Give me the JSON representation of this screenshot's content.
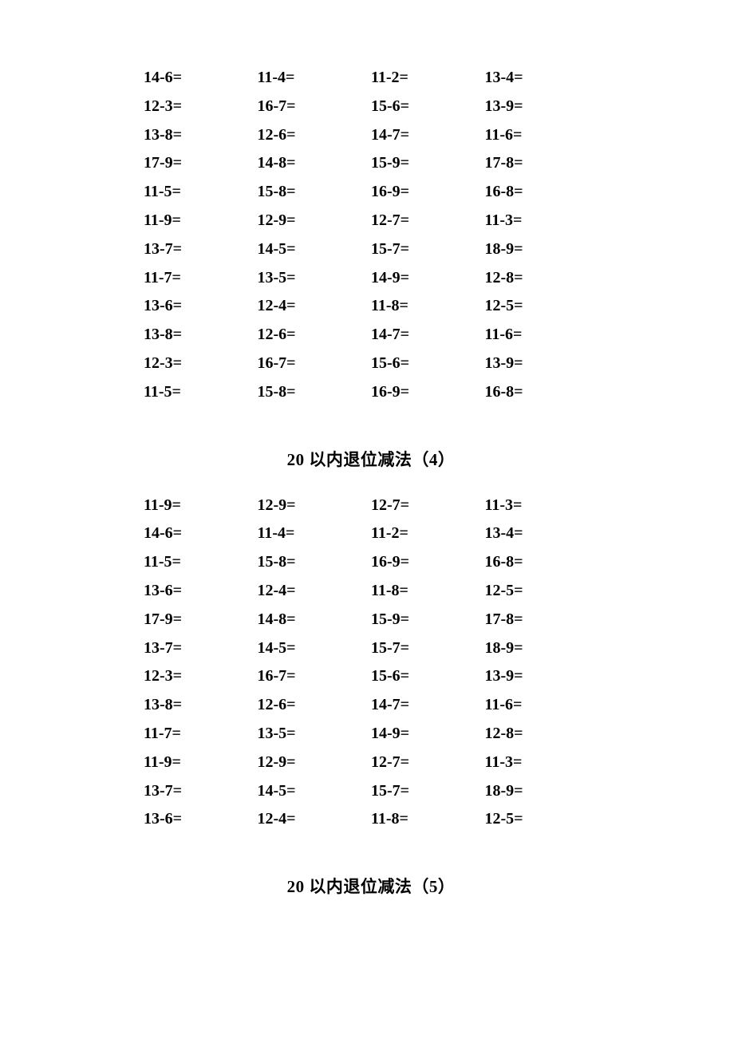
{
  "sections": [
    {
      "title": null,
      "rows": [
        [
          "14-6=",
          "11-4=",
          "11-2=",
          "13-4="
        ],
        [
          "12-3=",
          "16-7=",
          "15-6=",
          "13-9="
        ],
        [
          "13-8=",
          "12-6=",
          "14-7=",
          "11-6="
        ],
        [
          "17-9=",
          "14-8=",
          "15-9=",
          "17-8="
        ],
        [
          "11-5=",
          "15-8=",
          "16-9=",
          "16-8="
        ],
        [
          "11-9=",
          "12-9=",
          "12-7=",
          "11-3="
        ],
        [
          "13-7=",
          "14-5=",
          "15-7=",
          "18-9="
        ],
        [
          "11-7=",
          "13-5=",
          "14-9=",
          "12-8="
        ],
        [
          "13-6=",
          "12-4=",
          "11-8=",
          "12-5="
        ],
        [
          "13-8=",
          "12-6=",
          "14-7=",
          "11-6="
        ],
        [
          "12-3=",
          "16-7=",
          "15-6=",
          "13-9="
        ],
        [
          "11-5=",
          "15-8=",
          "16-9=",
          "16-8="
        ]
      ]
    },
    {
      "title": "20 以内退位减法（4）",
      "rows": [
        [
          "11-9=",
          "12-9=",
          "12-7=",
          "11-3="
        ],
        [
          "14-6=",
          "11-4=",
          "11-2=",
          "13-4="
        ],
        [
          "11-5=",
          "15-8=",
          "16-9=",
          "16-8="
        ],
        [
          "13-6=",
          "12-4=",
          "11-8=",
          "12-5="
        ],
        [
          "17-9=",
          "14-8=",
          "15-9=",
          "17-8="
        ],
        [
          "13-7=",
          "14-5=",
          "15-7=",
          "18-9="
        ],
        [
          "12-3=",
          "16-7=",
          "15-6=",
          "13-9="
        ],
        [
          "13-8=",
          "12-6=",
          "14-7=",
          "11-6="
        ],
        [
          "11-7=",
          "13-5=",
          "14-9=",
          "12-8="
        ],
        [
          "11-9=",
          "12-9=",
          "12-7=",
          "11-3="
        ],
        [
          "13-7=",
          "14-5=",
          "15-7=",
          "18-9="
        ],
        [
          "13-6=",
          "12-4=",
          "11-8=",
          "12-5="
        ]
      ]
    },
    {
      "title": "20 以内退位减法（5）",
      "rows": []
    }
  ],
  "style": {
    "text_color": "#000000",
    "background_color": "#ffffff",
    "font_weight": "bold",
    "cell_font_size": 20,
    "title_font_size": 21,
    "line_height": 35.8
  }
}
